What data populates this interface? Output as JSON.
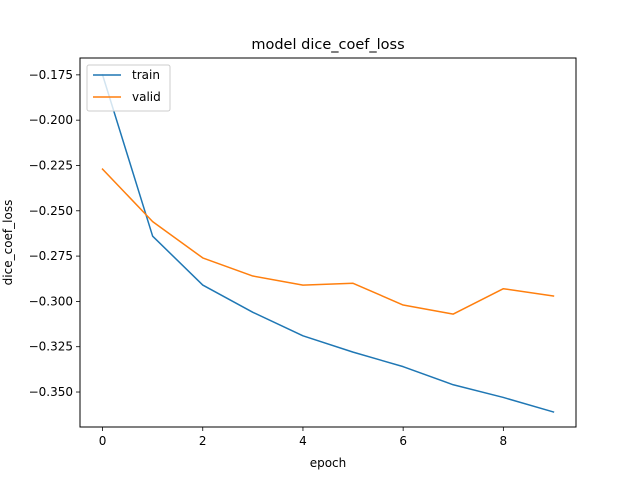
{
  "chart_data": {
    "type": "line",
    "title": "model dice_coef_loss",
    "xlabel": "epoch",
    "ylabel": "dice_coef_loss",
    "x": [
      0,
      1,
      2,
      3,
      4,
      5,
      6,
      7,
      8,
      9
    ],
    "series": [
      {
        "name": "train",
        "color": "#1f77b4",
        "values": [
          -0.175,
          -0.264,
          -0.291,
          -0.306,
          -0.319,
          -0.328,
          -0.336,
          -0.346,
          -0.353,
          -0.361
        ]
      },
      {
        "name": "valid",
        "color": "#ff7f0e",
        "values": [
          -0.227,
          -0.256,
          -0.276,
          -0.286,
          -0.291,
          -0.29,
          -0.302,
          -0.307,
          -0.293,
          -0.297
        ]
      }
    ],
    "xlim": [
      -0.45,
      9.45
    ],
    "ylim": [
      -0.3693,
      -0.1657
    ],
    "xticks": [
      0,
      2,
      4,
      6,
      8
    ],
    "xtick_labels": [
      "0",
      "2",
      "4",
      "6",
      "8"
    ],
    "yticks": [
      -0.175,
      -0.2,
      -0.225,
      -0.25,
      -0.275,
      -0.3,
      -0.325,
      -0.35
    ],
    "ytick_labels": [
      "−0.175",
      "−0.200",
      "−0.225",
      "−0.250",
      "−0.275",
      "−0.300",
      "−0.325",
      "−0.350"
    ],
    "grid": false,
    "legend_position": "top-left"
  }
}
